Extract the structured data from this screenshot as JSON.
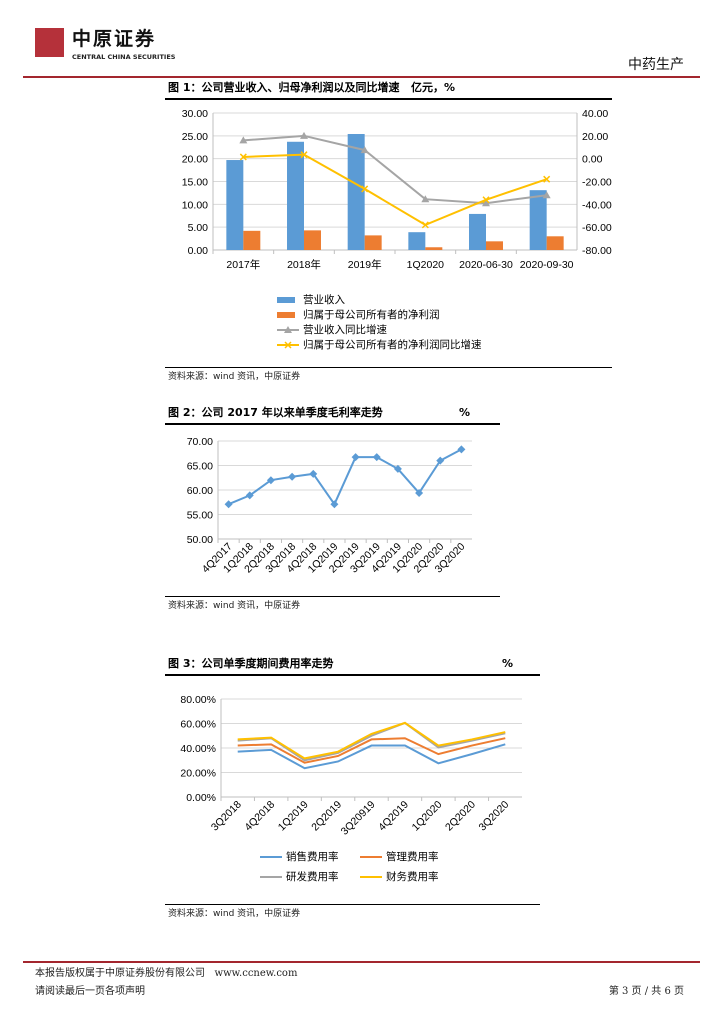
{
  "header": {
    "logo_cn": "中原证券",
    "logo_en": "CENTRAL CHINA SECURITIES",
    "section": "中药生产"
  },
  "fig1": {
    "title": "图 1：公司营业收入、归母净利润以及同比增速",
    "unit": "亿元，%",
    "source": "资料来源：wind 资讯，中原证券"
  },
  "fig2": {
    "title": "图 2：公司 2017 年以来单季度毛利率走势",
    "unit": "%",
    "source": "资料来源：wind 资讯，中原证券"
  },
  "fig3": {
    "title": "图 3：公司单季度期间费用率走势",
    "unit": "%",
    "source": "资料来源：wind 资讯，中原证券"
  },
  "footer": {
    "copyright": "本报告版权属于中原证券股份有限公司",
    "url": "www.ccnew.com",
    "notice": "请阅读最后一页各项声明",
    "page": "第 3 页 / 共 6 页"
  },
  "chart_data": [
    {
      "type": "bar",
      "categories": [
        "2017年",
        "2018年",
        "2019年",
        "1Q2020",
        "2020-06-30",
        "2020-09-30"
      ],
      "ylim": [
        0,
        30
      ],
      "yticks": [
        "0.00",
        "5.00",
        "10.00",
        "15.00",
        "20.00",
        "25.00",
        "30.00"
      ],
      "y2lim": [
        -80,
        40
      ],
      "y2ticks": [
        "-80.00",
        "-60.00",
        "-40.00",
        "-20.00",
        "0.00",
        "20.00",
        "40.00"
      ],
      "series": [
        {
          "name": "营业收入",
          "kind": "bar",
          "axis": "left",
          "color": "#5b9bd5",
          "values": [
            19.7,
            23.7,
            25.4,
            3.9,
            7.9,
            13.1
          ]
        },
        {
          "name": "归属于母公司所有者的净利润",
          "kind": "bar",
          "axis": "left",
          "color": "#ed7d31",
          "values": [
            4.2,
            4.3,
            3.2,
            0.6,
            1.9,
            3.0
          ]
        },
        {
          "name": "营业收入同比增速",
          "kind": "line",
          "axis": "right",
          "color": "#a5a5a5",
          "marker": "triangle",
          "values": [
            16,
            20,
            7.5,
            -35.5,
            -39,
            -32
          ]
        },
        {
          "name": "归属于母公司所有者的净利润同比增速",
          "kind": "line",
          "axis": "right",
          "color": "#ffc000",
          "marker": "x",
          "values": [
            1.5,
            3.5,
            -26.5,
            -58,
            -36,
            -18
          ]
        }
      ],
      "legend": "bottom"
    },
    {
      "type": "line",
      "categories": [
        "4Q2017",
        "1Q2018",
        "2Q2018",
        "3Q2018",
        "4Q2018",
        "1Q2019",
        "2Q2019",
        "3Q2019",
        "4Q2019",
        "1Q2020",
        "2Q2020",
        "3Q2020"
      ],
      "ylim": [
        50,
        70
      ],
      "yticks": [
        "50.00",
        "55.00",
        "60.00",
        "65.00",
        "70.00"
      ],
      "series": [
        {
          "name": "毛利率",
          "color": "#5b9bd5",
          "values": [
            57.1,
            58.9,
            62.0,
            62.7,
            63.3,
            57.1,
            66.7,
            66.7,
            64.3,
            59.4,
            66.0,
            68.3
          ]
        }
      ]
    },
    {
      "type": "line",
      "categories": [
        "3Q2018",
        "4Q2018",
        "1Q2019",
        "2Q2019",
        "3Q20919",
        "4Q2019",
        "1Q2020",
        "2Q2020",
        "3Q2020"
      ],
      "ylim": [
        0,
        80
      ],
      "yticks": [
        "0.00%",
        "20.00%",
        "40.00%",
        "60.00%",
        "80.00%"
      ],
      "series": [
        {
          "name": "销售费用率",
          "color": "#5b9bd5",
          "values": [
            37,
            38.5,
            23.5,
            29,
            42,
            42,
            27.5,
            35,
            43
          ]
        },
        {
          "name": "管理费用率",
          "color": "#ed7d31",
          "values": [
            42,
            43,
            28,
            33.5,
            47,
            48,
            35,
            42,
            48
          ]
        },
        {
          "name": "研发费用率",
          "color": "#a5a5a5",
          "values": [
            46,
            48,
            30,
            36,
            50,
            60.5,
            40.5,
            46,
            52
          ]
        },
        {
          "name": "财务费用率",
          "color": "#ffc000",
          "values": [
            47,
            48.5,
            31.5,
            37,
            51.5,
            60.5,
            42,
            47,
            53
          ]
        }
      ],
      "legend": "bottom"
    }
  ]
}
